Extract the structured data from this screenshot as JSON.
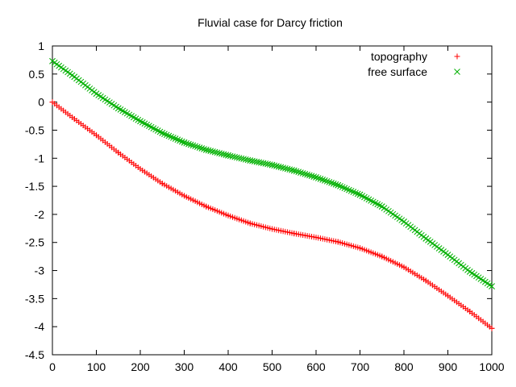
{
  "chart_data": {
    "type": "scatter",
    "title": "Fluvial case for Darcy friction",
    "xlabel": "",
    "ylabel": "",
    "xlim": [
      0,
      1000
    ],
    "ylim": [
      -4.5,
      1
    ],
    "xticks": [
      0,
      100,
      200,
      300,
      400,
      500,
      600,
      700,
      800,
      900,
      1000
    ],
    "yticks": [
      1,
      0.5,
      0,
      -0.5,
      -1,
      -1.5,
      -2,
      -2.5,
      -3,
      -3.5,
      -4,
      -4.5
    ],
    "xtick_labels": [
      "0",
      "100",
      "200",
      "300",
      "400",
      "500",
      "600",
      "700",
      "800",
      "900",
      "1000"
    ],
    "ytick_labels": [
      "1",
      "0.5",
      "0",
      "-0.5",
      "-1",
      "-1.5",
      "-2",
      "-2.5",
      "-3",
      "-3.5",
      "-4",
      "-4.5"
    ],
    "grid": false,
    "legend_position": "top-right",
    "series": [
      {
        "name": "topography",
        "marker": "plus",
        "color": "#ff0000",
        "x": [
          0,
          50,
          100,
          150,
          200,
          250,
          300,
          350,
          400,
          450,
          500,
          550,
          600,
          650,
          700,
          750,
          800,
          850,
          900,
          950,
          1000
        ],
        "y": [
          0.0,
          -0.3,
          -0.59,
          -0.9,
          -1.19,
          -1.45,
          -1.67,
          -1.86,
          -2.02,
          -2.16,
          -2.26,
          -2.34,
          -2.41,
          -2.49,
          -2.6,
          -2.75,
          -2.94,
          -3.18,
          -3.45,
          -3.73,
          -4.03
        ]
      },
      {
        "name": "free surface",
        "marker": "x",
        "color": "#00b000",
        "x": [
          0,
          50,
          100,
          150,
          200,
          250,
          300,
          350,
          400,
          450,
          500,
          550,
          600,
          650,
          700,
          750,
          800,
          850,
          900,
          950,
          1000
        ],
        "y": [
          0.73,
          0.45,
          0.15,
          -0.11,
          -0.34,
          -0.55,
          -0.72,
          -0.85,
          -0.95,
          -1.04,
          -1.12,
          -1.22,
          -1.34,
          -1.48,
          -1.65,
          -1.86,
          -2.13,
          -2.43,
          -2.72,
          -3.02,
          -3.28
        ]
      }
    ]
  }
}
